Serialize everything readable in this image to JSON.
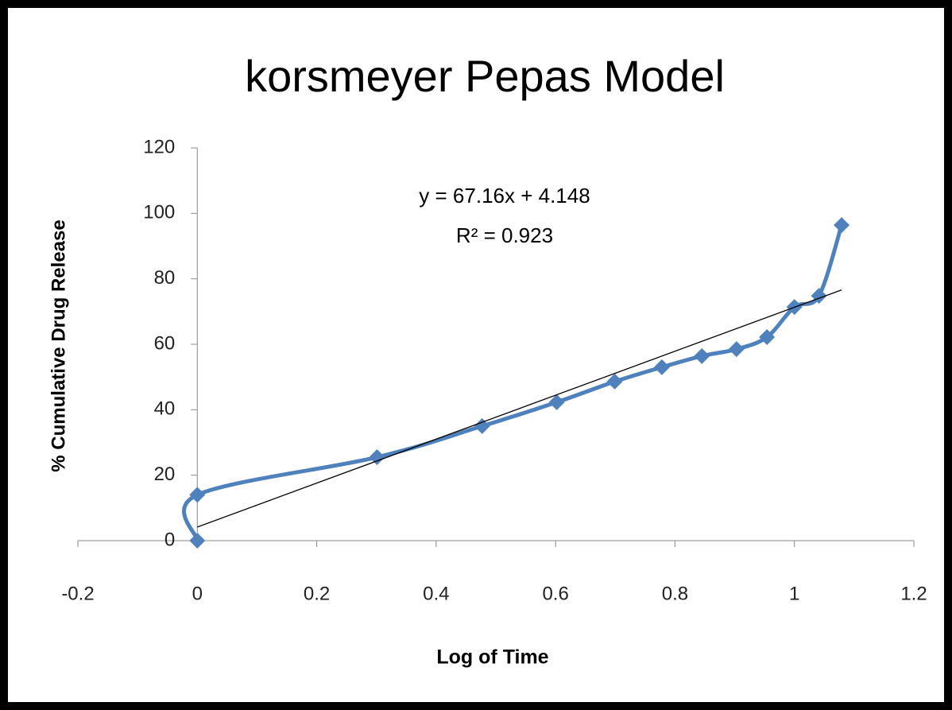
{
  "chart_data": {
    "type": "scatter",
    "title": "korsmeyer Pepas Model",
    "x_label": "Log of Time",
    "y_label": "% Cumulative Drug Release",
    "annotations": [
      "y = 67.16x + 4.148",
      "R² = 0.923"
    ],
    "series": [
      {
        "name": "Release",
        "color": "#4f81bd",
        "line": "smooth",
        "marker": "diamond",
        "x": [
          0,
          0,
          0.301,
          0.477,
          0.602,
          0.699,
          0.778,
          0.845,
          0.903,
          0.954,
          1.0,
          1.041,
          1.079
        ],
        "values": [
          0,
          14,
          25.5,
          35,
          42.3,
          48.6,
          53,
          56.4,
          58.5,
          62.2,
          71.4,
          74.8,
          96.4
        ]
      },
      {
        "name": "Linear trendline",
        "color": "#000000",
        "line": "straight",
        "marker": "none",
        "x": [
          0,
          1.079
        ],
        "values": [
          4.148,
          76.61
        ]
      }
    ],
    "xlim": [
      -0.2,
      1.2
    ],
    "xticks": [
      -0.2,
      0,
      0.2,
      0.4,
      0.6,
      0.8,
      1,
      1.2
    ],
    "ylim": [
      0,
      120
    ],
    "yticks": [
      0,
      20,
      40,
      60,
      80,
      100,
      120
    ],
    "grid": false,
    "legend": false
  }
}
